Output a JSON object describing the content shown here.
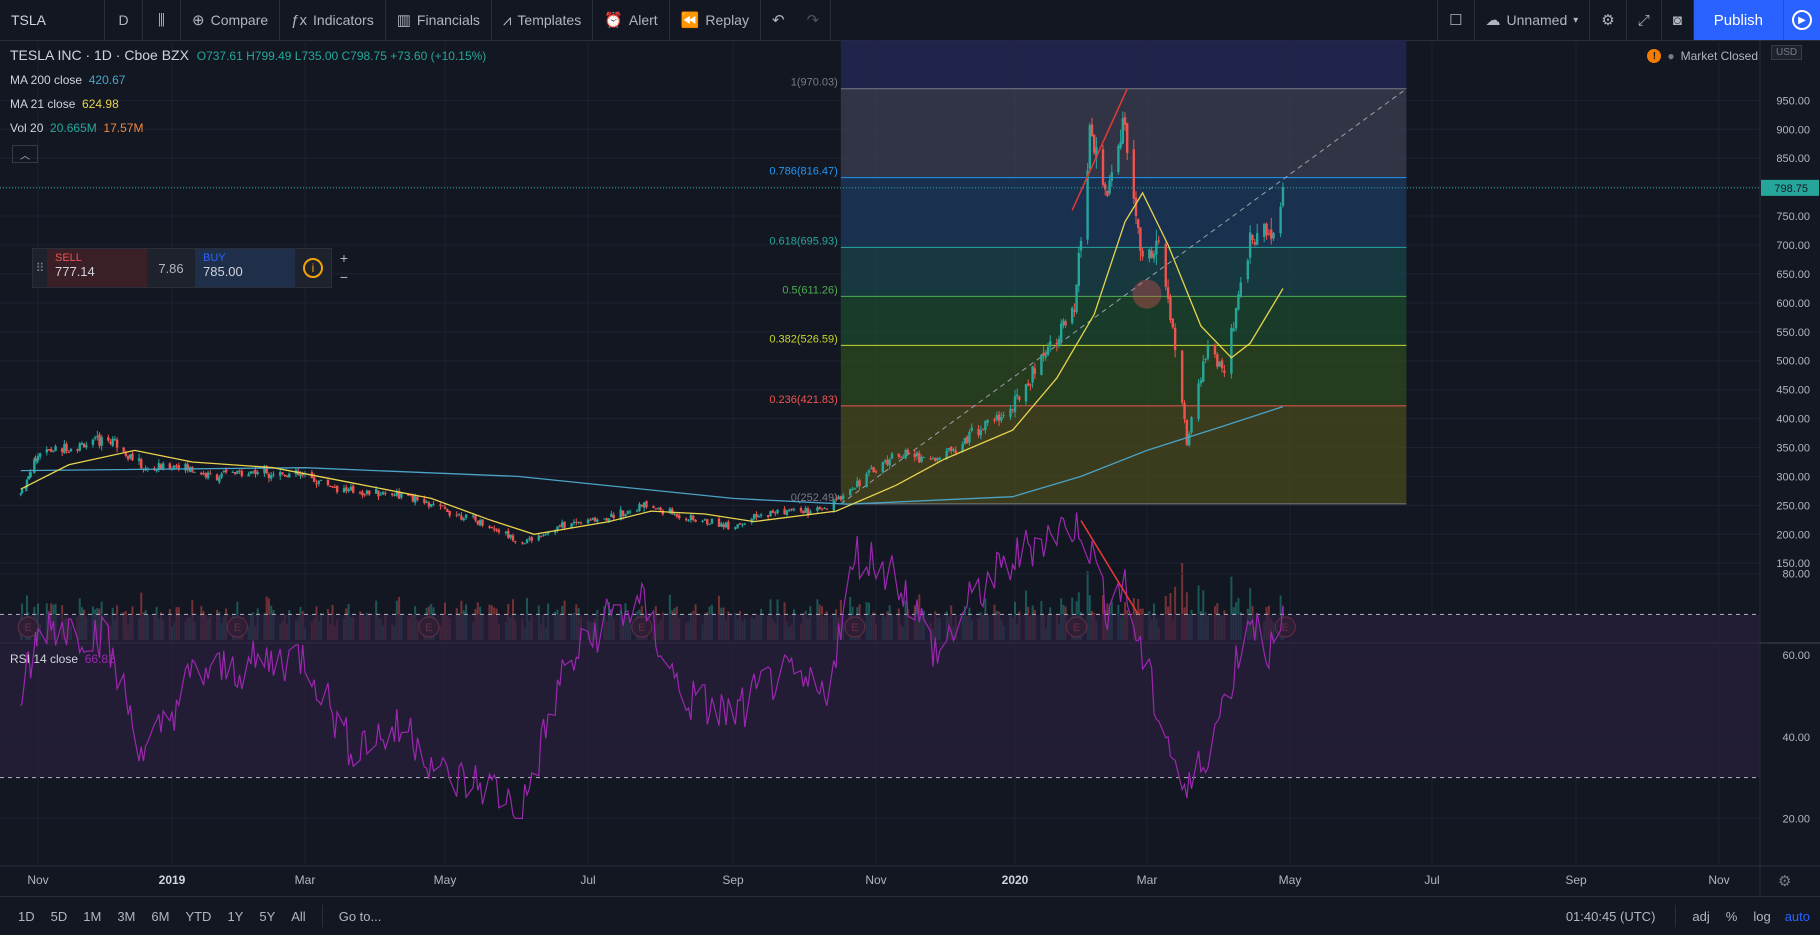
{
  "toolbar": {
    "symbol": "TSLA",
    "interval": "D",
    "compare": "Compare",
    "indicators": "Indicators",
    "financials": "Financials",
    "templates": "Templates",
    "alert": "Alert",
    "replay": "Replay",
    "layout_name": "Unnamed",
    "publish": "Publish"
  },
  "header": {
    "title": "TESLA INC · 1D · Cboe BZX",
    "ohlc": "O737.61 H799.49 L735.00 C798.75 +73.60 (+10.15%)",
    "ma200_label": "MA 200 close",
    "ma200_value": "420.67",
    "ma21_label": "MA 21 close",
    "ma21_value": "624.98",
    "vol_label": "Vol 20",
    "vol_value1": "20.665M",
    "vol_value2": "17.57M",
    "market_status": "Market Closed",
    "currency": "USD"
  },
  "trade_panel": {
    "sell_label": "SELL",
    "sell_price": "777.14",
    "spread": "7.86",
    "buy_label": "BUY",
    "buy_price": "785.00"
  },
  "rsi": {
    "label": "RSI 14 close",
    "value": "66.82"
  },
  "bottom_bar": {
    "ranges": [
      "1D",
      "5D",
      "1M",
      "3M",
      "6M",
      "YTD",
      "1Y",
      "5Y",
      "All"
    ],
    "goto": "Go to...",
    "time": "01:40:45 (UTC)",
    "adj": "adj",
    "pct": "%",
    "log": "log",
    "auto": "auto"
  },
  "colors": {
    "up": "#26a69a",
    "down": "#ef5350",
    "ma21": "#e8d44d",
    "ma200": "#4aa3c7",
    "rsi": "#9c27b0",
    "accent": "#2962ff"
  },
  "chart_data": {
    "type": "candlestick",
    "title": "TESLA INC · 1D · Cboe BZX",
    "price_range": [
      130,
      1000
    ],
    "price_ticks": [
      150,
      200,
      250,
      300,
      350,
      400,
      450,
      500,
      550,
      600,
      650,
      700,
      750,
      800,
      850,
      900,
      950
    ],
    "x_ticks": [
      "Nov",
      "2019",
      "Mar",
      "May",
      "Jul",
      "Sep",
      "Nov",
      "2020",
      "Mar",
      "May",
      "Jul",
      "Sep",
      "Nov"
    ],
    "last_price": "798.75",
    "close_path": [
      [
        "2018-10-18",
        270
      ],
      [
        "2018-11-01",
        340
      ],
      [
        "2018-11-15",
        350
      ],
      [
        "2018-12-05",
        365
      ],
      [
        "2018-12-20",
        310
      ],
      [
        "2019-01-03",
        320
      ],
      [
        "2019-01-18",
        300
      ],
      [
        "2019-02-10",
        310
      ],
      [
        "2019-03-01",
        300
      ],
      [
        "2019-03-20",
        275
      ],
      [
        "2019-04-10",
        270
      ],
      [
        "2019-04-25",
        250
      ],
      [
        "2019-05-10",
        230
      ],
      [
        "2019-05-25",
        205
      ],
      [
        "2019-06-03",
        185
      ],
      [
        "2019-06-20",
        215
      ],
      [
        "2019-07-10",
        230
      ],
      [
        "2019-07-25",
        250
      ],
      [
        "2019-08-15",
        225
      ],
      [
        "2019-09-01",
        215
      ],
      [
        "2019-09-20",
        240
      ],
      [
        "2019-10-10",
        240
      ],
      [
        "2019-10-24",
        290
      ],
      [
        "2019-11-10",
        340
      ],
      [
        "2019-11-28",
        330
      ],
      [
        "2019-12-15",
        380
      ],
      [
        "2019-12-31",
        418
      ],
      [
        "2020-01-15",
        520
      ],
      [
        "2020-01-28",
        580
      ],
      [
        "2020-02-04",
        890
      ],
      [
        "2020-02-12",
        780
      ],
      [
        "2020-02-19",
        915
      ],
      [
        "2020-02-28",
        670
      ],
      [
        "2020-03-06",
        700
      ],
      [
        "2020-03-12",
        550
      ],
      [
        "2020-03-18",
        360
      ],
      [
        "2020-03-27",
        520
      ],
      [
        "2020-04-03",
        480
      ],
      [
        "2020-04-14",
        710
      ],
      [
        "2020-04-24",
        725
      ],
      [
        "2020-04-28",
        798.75
      ]
    ],
    "series": [
      {
        "name": "MA 200 close",
        "values": [
          [
            "2018-10-18",
            310
          ],
          [
            "2019-03-01",
            315
          ],
          [
            "2019-06-01",
            300
          ],
          [
            "2019-09-01",
            262
          ],
          [
            "2019-10-20",
            252
          ],
          [
            "2019-12-31",
            265
          ],
          [
            "2020-01-31",
            300
          ],
          [
            "2020-03-01",
            345
          ],
          [
            "2020-04-01",
            385
          ],
          [
            "2020-04-28",
            420.67
          ]
        ]
      },
      {
        "name": "MA 21 close",
        "values": [
          [
            "2018-10-18",
            278
          ],
          [
            "2018-11-15",
            320
          ],
          [
            "2018-12-15",
            345
          ],
          [
            "2019-01-10",
            325
          ],
          [
            "2019-02-15",
            315
          ],
          [
            "2019-03-20",
            290
          ],
          [
            "2019-04-25",
            262
          ],
          [
            "2019-05-20",
            225
          ],
          [
            "2019-06-08",
            200
          ],
          [
            "2019-07-10",
            222
          ],
          [
            "2019-07-28",
            240
          ],
          [
            "2019-08-20",
            235
          ],
          [
            "2019-09-10",
            222
          ],
          [
            "2019-10-15",
            240
          ],
          [
            "2019-11-10",
            285
          ],
          [
            "2019-12-01",
            330
          ],
          [
            "2019-12-31",
            380
          ],
          [
            "2020-01-20",
            470
          ],
          [
            "2020-02-06",
            580
          ],
          [
            "2020-02-20",
            740
          ],
          [
            "2020-02-28",
            790
          ],
          [
            "2020-03-10",
            700
          ],
          [
            "2020-03-24",
            560
          ],
          [
            "2020-04-06",
            505
          ],
          [
            "2020-04-14",
            530
          ],
          [
            "2020-04-28",
            624.98
          ]
        ]
      }
    ],
    "fibonacci": [
      {
        "label": "1(970.03)",
        "price": 970.03,
        "color": "#787b86"
      },
      {
        "label": "0.786(816.47)",
        "price": 816.47,
        "color": "#2196f3"
      },
      {
        "label": "0.618(695.93)",
        "price": 695.93,
        "color": "#26a69a"
      },
      {
        "label": "0.5(611.26)",
        "price": 611.26,
        "color": "#4caf50"
      },
      {
        "label": "0.382(526.59)",
        "price": 526.59,
        "color": "#c6d62b"
      },
      {
        "label": "0.236(421.83)",
        "price": 421.83,
        "color": "#ef5350"
      },
      {
        "label": "0(252.49)",
        "price": 252.49,
        "color": "#787b86"
      }
    ],
    "earnings_markers": [
      "2018-10-24",
      "2019-01-30",
      "2019-04-24",
      "2019-07-24",
      "2019-10-23",
      "2020-01-29",
      "2020-04-29"
    ],
    "rsi_range": [
      15,
      100
    ],
    "rsi_ticks": [
      20,
      40,
      60,
      80
    ],
    "rsi_bands": [
      30,
      70
    ],
    "rsi_path": [
      [
        "2018-10-18",
        50
      ],
      [
        "2018-11-05",
        68
      ],
      [
        "2018-12-01",
        65
      ],
      [
        "2018-12-20",
        35
      ],
      [
        "2019-01-10",
        55
      ],
      [
        "2019-02-10",
        58
      ],
      [
        "2019-03-01",
        60
      ],
      [
        "2019-03-20",
        38
      ],
      [
        "2019-04-15",
        42
      ],
      [
        "2019-05-01",
        30
      ],
      [
        "2019-05-20",
        28
      ],
      [
        "2019-06-03",
        22
      ],
      [
        "2019-06-20",
        55
      ],
      [
        "2019-07-10",
        70
      ],
      [
        "2019-07-25",
        72
      ],
      [
        "2019-08-10",
        50
      ],
      [
        "2019-09-01",
        45
      ],
      [
        "2019-09-20",
        55
      ],
      [
        "2019-10-10",
        50
      ],
      [
        "2019-10-24",
        85
      ],
      [
        "2019-11-10",
        80
      ],
      [
        "2019-11-28",
        60
      ],
      [
        "2019-12-15",
        75
      ],
      [
        "2020-01-10",
        88
      ],
      [
        "2020-01-31",
        93
      ],
      [
        "2020-02-12",
        72
      ],
      [
        "2020-02-19",
        78
      ],
      [
        "2020-03-01",
        55
      ],
      [
        "2020-03-18",
        25
      ],
      [
        "2020-04-01",
        45
      ],
      [
        "2020-04-14",
        70
      ],
      [
        "2020-04-24",
        60
      ],
      [
        "2020-04-28",
        66.82
      ]
    ],
    "annotations": [
      "red trendline on price peak",
      "red trendline on RSI peak (divergence)",
      "red circle near 0.5 level",
      "dashed diagonal fib trendline"
    ]
  }
}
